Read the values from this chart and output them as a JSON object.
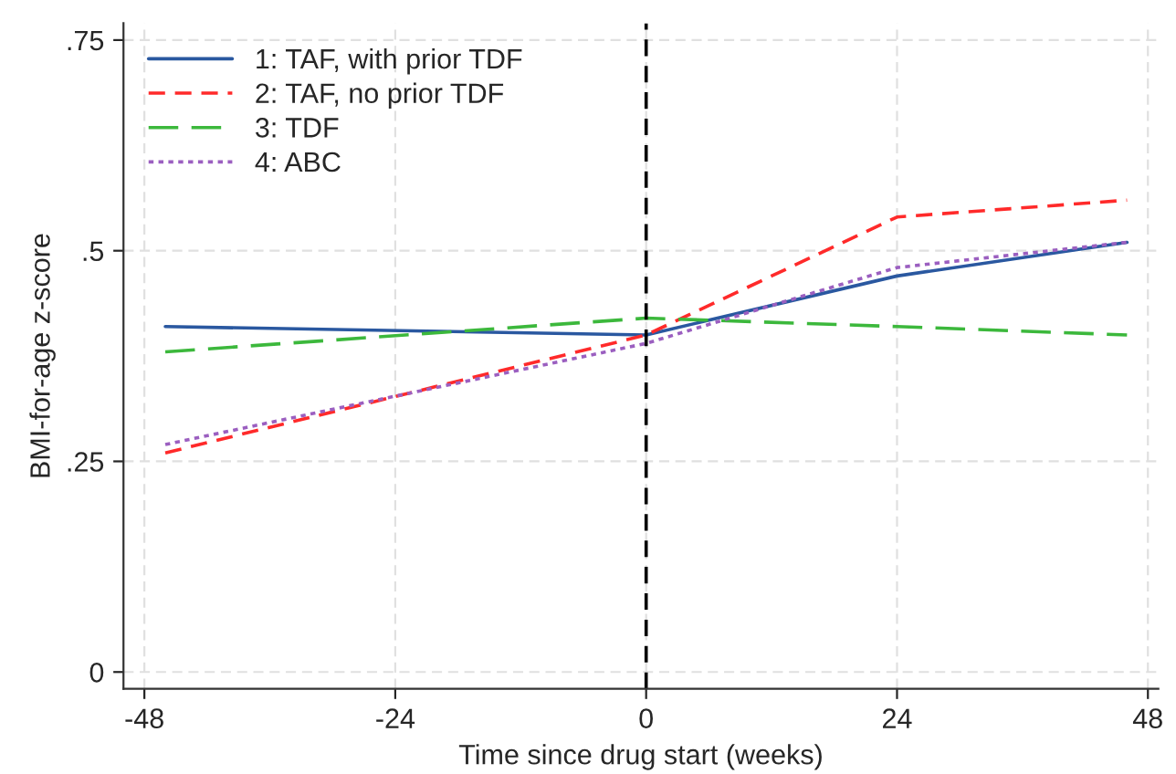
{
  "chart_data": {
    "type": "line",
    "xlabel": "Time since drug start (weeks)",
    "ylabel": "BMI-for-age z-score",
    "x": [
      -46,
      0,
      24,
      46
    ],
    "series": [
      {
        "name": "1: TAF, with prior TDF",
        "color": "#2a58a0",
        "line_style": "solid",
        "values": [
          0.41,
          0.4,
          0.47,
          0.51
        ]
      },
      {
        "name": "2: TAF, no prior TDF",
        "color": "#ff2a2a",
        "line_style": "dashed",
        "values": [
          0.26,
          0.4,
          0.54,
          0.56
        ]
      },
      {
        "name": "3: TDF",
        "color": "#3cb83c",
        "line_style": "longdash",
        "values": [
          0.38,
          0.42,
          0.41,
          0.4
        ]
      },
      {
        "name": "4: ABC",
        "color": "#9b5fc0",
        "line_style": "dotted",
        "values": [
          0.27,
          0.39,
          0.48,
          0.51
        ]
      }
    ],
    "xlim": [
      -50,
      49
    ],
    "ylim": [
      -0.02,
      0.77
    ],
    "xticks": [
      -48,
      -24,
      0,
      24,
      48
    ],
    "yticks": [
      0,
      {
        "value": 0.25,
        "label": ".25"
      },
      {
        "value": 0.5,
        "label": ".5"
      },
      {
        "value": 0.75,
        "label": ".75"
      }
    ],
    "ref_lines": [
      {
        "axis": "x",
        "value": 0,
        "color": "#000000",
        "line_style": "dashed"
      }
    ],
    "grid": true,
    "legend": "top left",
    "marker": "none"
  }
}
